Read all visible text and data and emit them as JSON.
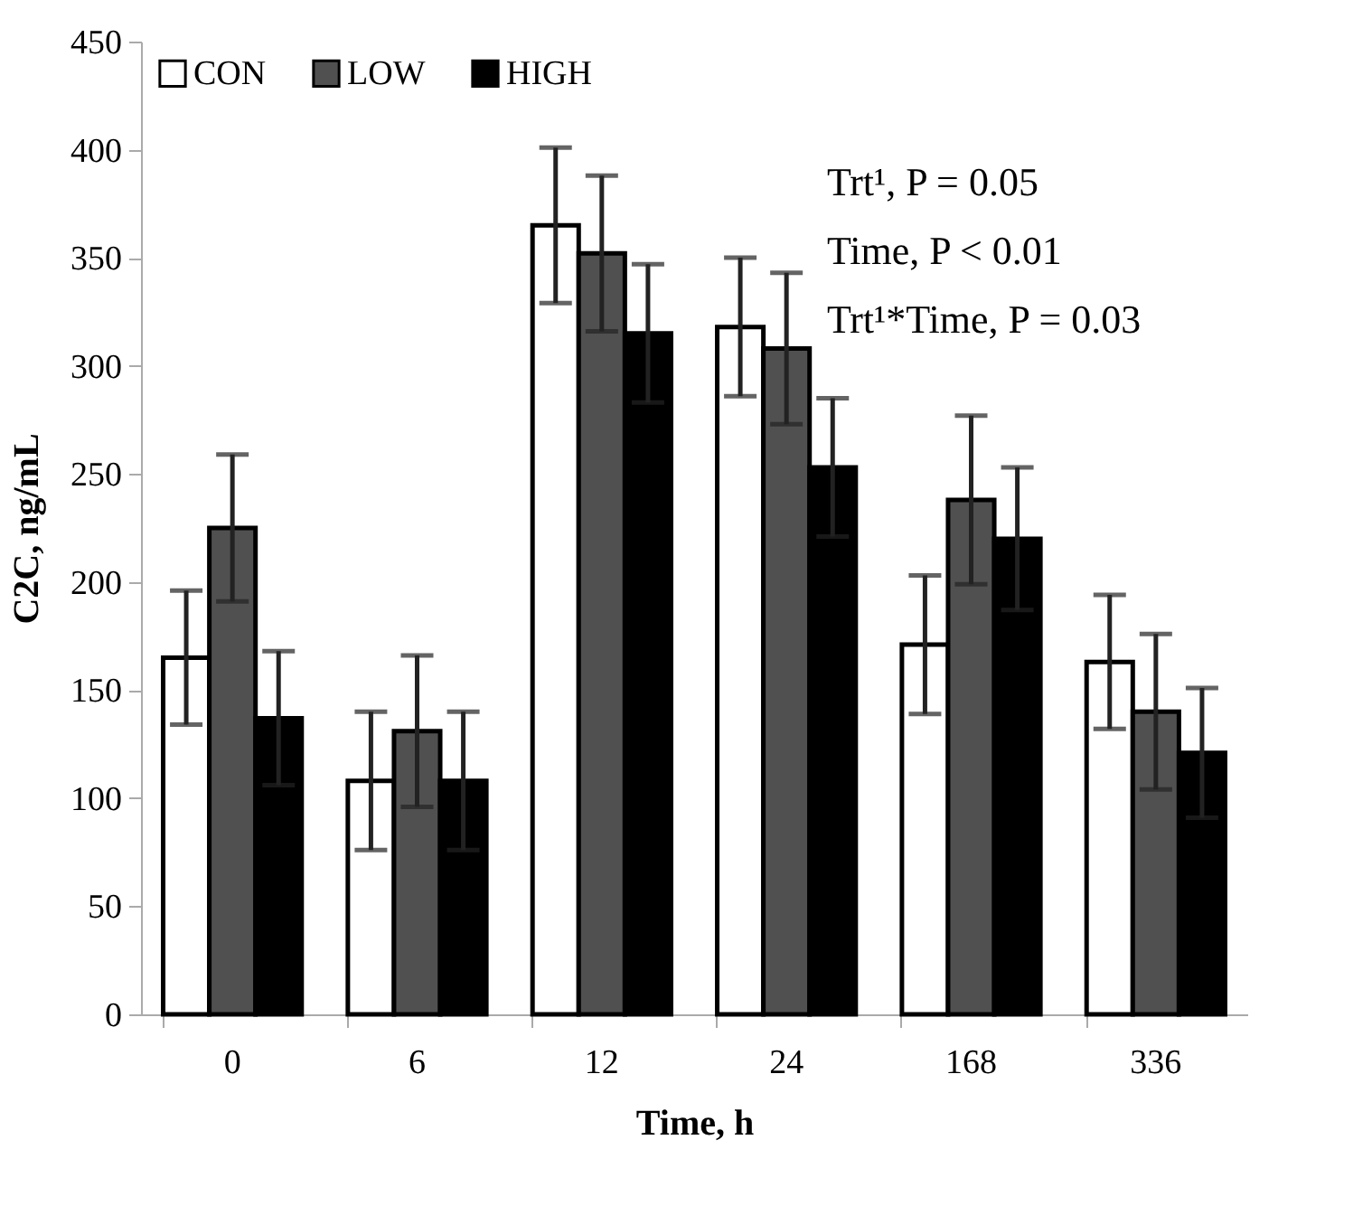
{
  "chart_data": {
    "type": "bar",
    "xlabel": "Time, h",
    "ylabel": "C2C, ng/mL",
    "categories": [
      "0",
      "6",
      "12",
      "24",
      "168",
      "336"
    ],
    "series": [
      {
        "name": "CON",
        "color": "#ffffff",
        "values": [
          165,
          108,
          365,
          318,
          171,
          163
        ],
        "errors": [
          31,
          32,
          36,
          32,
          32,
          31
        ]
      },
      {
        "name": "LOW",
        "color": "#505050",
        "values": [
          225,
          131,
          352,
          308,
          238,
          140
        ],
        "errors": [
          34,
          35,
          36,
          35,
          39,
          36
        ]
      },
      {
        "name": "HIGH",
        "color": "#000000",
        "values": [
          137,
          108,
          315,
          253,
          220,
          121
        ],
        "errors": [
          31,
          32,
          32,
          32,
          33,
          30
        ]
      }
    ],
    "ylim": [
      0,
      450
    ],
    "yticks": [
      0,
      50,
      100,
      150,
      200,
      250,
      300,
      350,
      400,
      450
    ],
    "grid": false,
    "legend": "top left",
    "annotations": [
      "Trt¹, P = 0.05",
      "Time, P < 0.01",
      "Trt¹*Time, P = 0.03"
    ]
  }
}
